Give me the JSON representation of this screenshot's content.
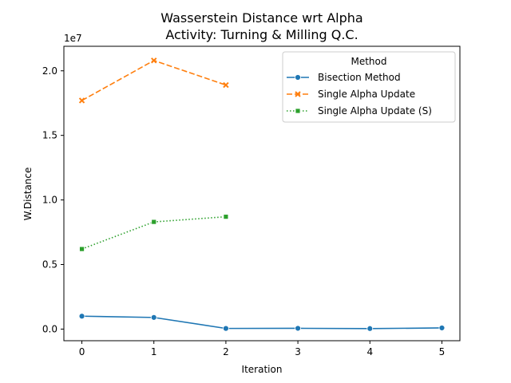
{
  "chart_data": {
    "type": "line",
    "title": "Wasserstein Distance wrt Alpha",
    "subtitle": "Activity: Turning & Milling Q.C.",
    "xlabel": "Iteration",
    "ylabel": "W.Distance",
    "y_offset_label": "1e7",
    "xlim": [
      -0.25,
      5.25
    ],
    "ylim": [
      -0.09,
      2.19
    ],
    "x_ticks": [
      0,
      1,
      2,
      3,
      4,
      5
    ],
    "x_tick_labels": [
      "0",
      "1",
      "2",
      "3",
      "4",
      "5"
    ],
    "y_ticks": [
      0.0,
      0.5,
      1.0,
      1.5,
      2.0
    ],
    "y_tick_labels": [
      "0.0",
      "0.5",
      "1.0",
      "1.5",
      "2.0"
    ],
    "grid": false,
    "legend": {
      "title": "Method",
      "placement": "top-right"
    },
    "series": [
      {
        "name": "Bisection Method",
        "color": "#1f77b4",
        "line_style": "solid",
        "marker": "circle",
        "x": [
          0,
          1,
          2,
          3,
          4,
          5
        ],
        "y": [
          0.1,
          0.09,
          0.005,
          0.006,
          0.004,
          0.009
        ]
      },
      {
        "name": "Single Alpha Update",
        "color": "#ff7f0e",
        "line_style": "dashed",
        "marker": "x",
        "x": [
          0,
          1,
          2
        ],
        "y": [
          1.77,
          2.08,
          1.89
        ]
      },
      {
        "name": "Single Alpha Update (S)",
        "color": "#2ca02c",
        "line_style": "dotted",
        "marker": "square",
        "x": [
          0,
          1,
          2
        ],
        "y": [
          0.62,
          0.83,
          0.87
        ]
      }
    ]
  }
}
